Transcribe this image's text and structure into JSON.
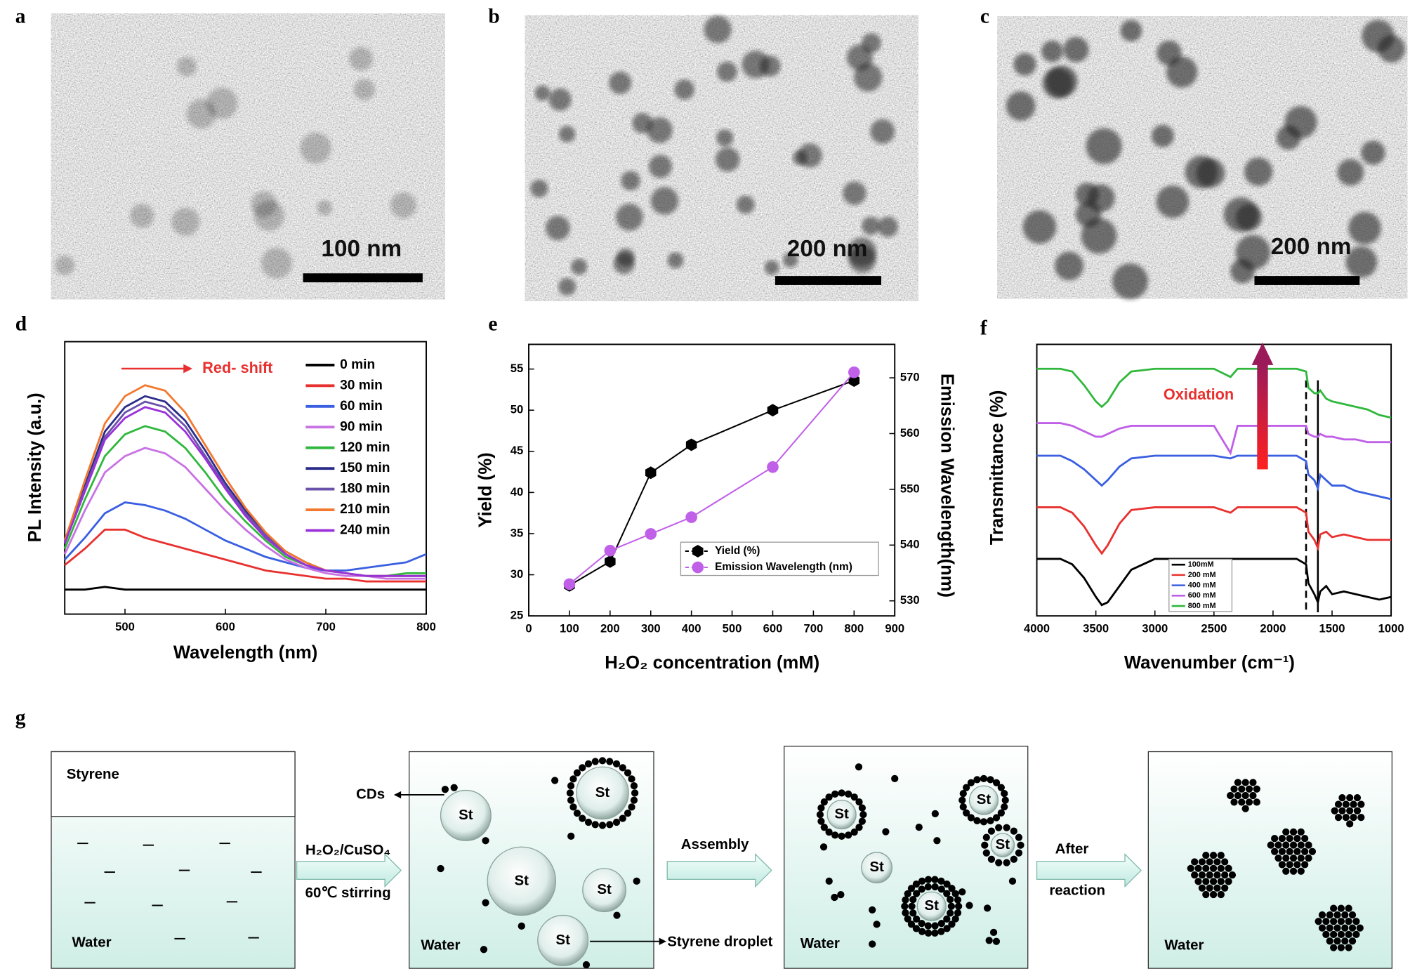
{
  "panel_labels": [
    "a",
    "b",
    "c",
    "d",
    "e",
    "f",
    "g"
  ],
  "tem_images": [
    {
      "scale_bar": "100 nm"
    },
    {
      "scale_bar": "200 nm"
    },
    {
      "scale_bar": "200 nm"
    }
  ],
  "chart_data": [
    {
      "type": "line",
      "xlabel": "Wavelength (nm)",
      "ylabel": "PL Intensity (a.u.)",
      "annotation": "Red- shift",
      "x": [
        440,
        460,
        480,
        500,
        520,
        540,
        560,
        580,
        600,
        620,
        640,
        660,
        680,
        700,
        720,
        740,
        760,
        780,
        800
      ],
      "xlim": [
        440,
        800
      ],
      "xticks": [
        500,
        600,
        700,
        800
      ],
      "ylim": [
        0,
        100
      ],
      "legend": "upper right",
      "series": [
        {
          "name": "0 min",
          "color": "#000000",
          "values": [
            9,
            9,
            10,
            9,
            9,
            9,
            9,
            9,
            9,
            9,
            9,
            9,
            9,
            9,
            9,
            9,
            9,
            9,
            9
          ]
        },
        {
          "name": "30 min",
          "color": "#e8312f",
          "values": [
            18,
            24,
            31,
            31,
            28,
            26,
            24,
            22,
            20,
            18,
            16,
            15,
            14,
            13,
            13,
            12,
            12,
            12,
            12
          ]
        },
        {
          "name": "60 min",
          "color": "#3a5fe0",
          "values": [
            20,
            28,
            37,
            41,
            40,
            38,
            35,
            31,
            27,
            24,
            21,
            19,
            17,
            16,
            16,
            17,
            18,
            19,
            22
          ]
        },
        {
          "name": "90 min",
          "color": "#c872e4",
          "values": [
            22,
            38,
            52,
            58,
            61,
            59,
            54,
            46,
            38,
            31,
            25,
            20,
            17,
            15,
            14,
            14,
            13,
            13,
            13
          ]
        },
        {
          "name": "120 min",
          "color": "#2fb83c",
          "values": [
            24,
            42,
            58,
            66,
            69,
            67,
            61,
            52,
            42,
            34,
            27,
            21,
            18,
            16,
            15,
            14,
            14,
            15,
            15
          ]
        },
        {
          "name": "150 min",
          "color": "#2b2b8c",
          "values": [
            27,
            47,
            67,
            76,
            80,
            78,
            71,
            60,
            48,
            38,
            29,
            23,
            19,
            16,
            15,
            14,
            14,
            14,
            14
          ]
        },
        {
          "name": "180 min",
          "color": "#6a52aa",
          "values": [
            26,
            46,
            65,
            74,
            78,
            76,
            69,
            58,
            47,
            37,
            29,
            22,
            18,
            16,
            15,
            14,
            14,
            14,
            14
          ]
        },
        {
          "name": "210 min",
          "color": "#f2792f",
          "values": [
            27,
            49,
            70,
            80,
            84,
            82,
            74,
            62,
            50,
            39,
            30,
            23,
            19,
            16,
            15,
            14,
            14,
            14,
            14
          ]
        },
        {
          "name": "240 min",
          "color": "#9a30d8",
          "values": [
            26,
            45,
            64,
            72,
            76,
            74,
            67,
            57,
            46,
            36,
            28,
            22,
            18,
            16,
            15,
            14,
            14,
            14,
            14
          ]
        }
      ]
    },
    {
      "type": "line",
      "xlabel": "H₂O₂ concentration (mM)",
      "ylabel": "Yield (%)",
      "y2label": "Emission Wavelength(nm)",
      "x": [
        100,
        200,
        300,
        400,
        600,
        800
      ],
      "xlim": [
        0,
        900
      ],
      "xticks": [
        0,
        100,
        200,
        300,
        400,
        500,
        600,
        700,
        800,
        900
      ],
      "ylim": [
        25,
        58
      ],
      "yticks": [
        25,
        30,
        35,
        40,
        45,
        50,
        55
      ],
      "y2lim": [
        527.3,
        576
      ],
      "y2ticks": [
        530,
        540,
        550,
        560,
        570
      ],
      "legend": "lower right",
      "series": [
        {
          "name": "Yield (%)",
          "color": "#000000",
          "marker": "hexagon",
          "values": [
            28.7,
            31.6,
            42.4,
            45.8,
            50,
            53.6
          ]
        },
        {
          "name": "Emission Wavelength (nm)",
          "color": "#c060e8",
          "marker": "circle",
          "axis": "y2",
          "values": [
            533,
            539,
            542,
            545,
            554,
            571
          ]
        }
      ]
    },
    {
      "type": "line",
      "xlabel": "Wavenumber (cm⁻¹)",
      "ylabel": "Transmittance (%)",
      "annotation": "Oxidation",
      "x": [
        4000,
        3800,
        3700,
        3600,
        3500,
        3450,
        3400,
        3300,
        3200,
        3000,
        2800,
        2500,
        2360,
        2300,
        2000,
        1800,
        1720,
        1700,
        1650,
        1620,
        1600,
        1550,
        1500,
        1400,
        1300,
        1200,
        1100,
        1000
      ],
      "xlim": [
        4000,
        1000
      ],
      "xticks": [
        4000,
        3500,
        3000,
        2500,
        2000,
        1500,
        1000
      ],
      "ylim": [
        0,
        100
      ],
      "legend": "lower center",
      "vlines": [
        {
          "value": 1720,
          "style": "dashed"
        },
        {
          "value": 1620,
          "style": "solid"
        }
      ],
      "series": [
        {
          "name": "100mM",
          "color": "#000000",
          "values": [
            21,
            21,
            19,
            14,
            7,
            4,
            5,
            11,
            17,
            21,
            21,
            21,
            21,
            21,
            21,
            21,
            19,
            12,
            8,
            5,
            9,
            11,
            8,
            9,
            8,
            7,
            6,
            7
          ]
        },
        {
          "name": "200 mM",
          "color": "#e8312f",
          "values": [
            40,
            40,
            38,
            33,
            26,
            23,
            26,
            34,
            39,
            40,
            40,
            40,
            38,
            40,
            40,
            40,
            38,
            31,
            28,
            25,
            30,
            31,
            29,
            30,
            29,
            28,
            28,
            28
          ]
        },
        {
          "name": "400 mM",
          "color": "#3a5fe0",
          "values": [
            59,
            59,
            57,
            54,
            50,
            48,
            50,
            55,
            58,
            59,
            59,
            59,
            58,
            59,
            59,
            59,
            57,
            52,
            50,
            47,
            52,
            50,
            48,
            48,
            46,
            45,
            44,
            43
          ]
        },
        {
          "name": "600 mM",
          "color": "#c060e8",
          "values": [
            71,
            71,
            70,
            68,
            66,
            66,
            67,
            69,
            70,
            70,
            70,
            70,
            60,
            70,
            70,
            70,
            70,
            67,
            66,
            66,
            67,
            66,
            66,
            65,
            65,
            64,
            64,
            64
          ]
        },
        {
          "name": "800 mM",
          "color": "#2fb83c",
          "values": [
            91,
            91,
            90,
            85,
            79,
            77,
            79,
            86,
            90,
            91,
            91,
            91,
            88,
            91,
            91,
            91,
            90,
            84,
            82,
            82,
            83,
            80,
            79,
            78,
            77,
            76,
            74,
            73
          ]
        }
      ]
    }
  ],
  "diagram": {
    "oil": "Styrene",
    "water": "Water",
    "droplet": "St",
    "steps": [
      {
        "top": "H₂O₂/CuSO₄",
        "bottom": "60℃ stirring"
      },
      {
        "top": "Assembly"
      },
      {
        "top": "After",
        "bottom": "reaction"
      }
    ],
    "callouts": [
      "CDs",
      "Styrene droplet"
    ]
  }
}
